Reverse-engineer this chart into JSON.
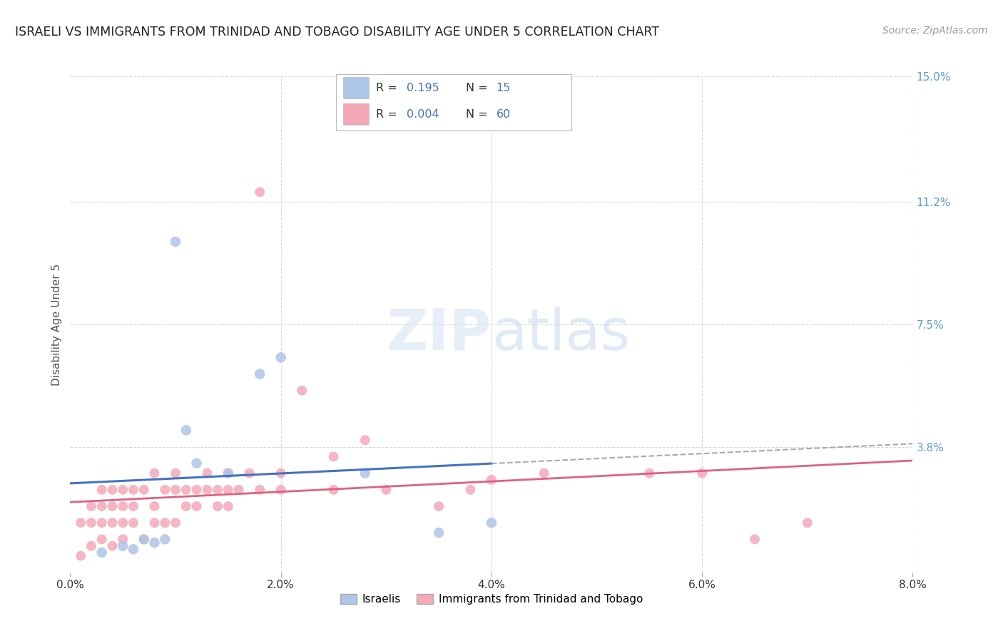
{
  "title": "ISRAELI VS IMMIGRANTS FROM TRINIDAD AND TOBAGO DISABILITY AGE UNDER 5 CORRELATION CHART",
  "source": "Source: ZipAtlas.com",
  "ylabel": "Disability Age Under 5",
  "xlim": [
    0.0,
    0.08
  ],
  "ylim": [
    0.0,
    0.15
  ],
  "xtick_vals": [
    0.0,
    0.02,
    0.04,
    0.06,
    0.08
  ],
  "xtick_labels": [
    "0.0%",
    "2.0%",
    "4.0%",
    "6.0%",
    "8.0%"
  ],
  "ytick_vals": [
    0.038,
    0.075,
    0.112,
    0.15
  ],
  "ytick_labels": [
    "3.8%",
    "7.5%",
    "11.2%",
    "15.0%"
  ],
  "israelis_color": "#aec6e8",
  "trinidad_color": "#f4a8b8",
  "israelis_R": "0.195",
  "israelis_N": "15",
  "trinidad_R": "0.004",
  "trinidad_N": "60",
  "bg_color": "#ffffff",
  "grid_color": "#d8d8d8",
  "axis_label_color": "#5b9bd5",
  "trendline_israeli_color": "#4472c4",
  "trendline_trinidad_color": "#e06080",
  "israelis_x": [
    0.003,
    0.005,
    0.006,
    0.007,
    0.008,
    0.009,
    0.01,
    0.011,
    0.012,
    0.015,
    0.018,
    0.02,
    0.028,
    0.035,
    0.04
  ],
  "israelis_y": [
    0.006,
    0.008,
    0.007,
    0.01,
    0.009,
    0.01,
    0.1,
    0.043,
    0.033,
    0.03,
    0.06,
    0.065,
    0.03,
    0.012,
    0.015
  ],
  "trinidad_x": [
    0.001,
    0.001,
    0.002,
    0.002,
    0.002,
    0.003,
    0.003,
    0.003,
    0.003,
    0.004,
    0.004,
    0.004,
    0.004,
    0.005,
    0.005,
    0.005,
    0.005,
    0.006,
    0.006,
    0.006,
    0.007,
    0.007,
    0.008,
    0.008,
    0.008,
    0.009,
    0.009,
    0.01,
    0.01,
    0.01,
    0.011,
    0.011,
    0.012,
    0.012,
    0.013,
    0.013,
    0.014,
    0.014,
    0.015,
    0.015,
    0.015,
    0.016,
    0.017,
    0.018,
    0.018,
    0.02,
    0.02,
    0.022,
    0.025,
    0.025,
    0.028,
    0.03,
    0.035,
    0.038,
    0.04,
    0.045,
    0.055,
    0.06,
    0.065,
    0.07
  ],
  "trinidad_y": [
    0.005,
    0.015,
    0.008,
    0.015,
    0.02,
    0.01,
    0.015,
    0.02,
    0.025,
    0.008,
    0.015,
    0.02,
    0.025,
    0.01,
    0.015,
    0.02,
    0.025,
    0.015,
    0.02,
    0.025,
    0.01,
    0.025,
    0.015,
    0.02,
    0.03,
    0.015,
    0.025,
    0.015,
    0.025,
    0.03,
    0.02,
    0.025,
    0.02,
    0.025,
    0.025,
    0.03,
    0.02,
    0.025,
    0.02,
    0.025,
    0.03,
    0.025,
    0.03,
    0.025,
    0.115,
    0.025,
    0.03,
    0.055,
    0.025,
    0.035,
    0.04,
    0.025,
    0.02,
    0.025,
    0.028,
    0.03,
    0.03,
    0.03,
    0.01,
    0.015
  ]
}
